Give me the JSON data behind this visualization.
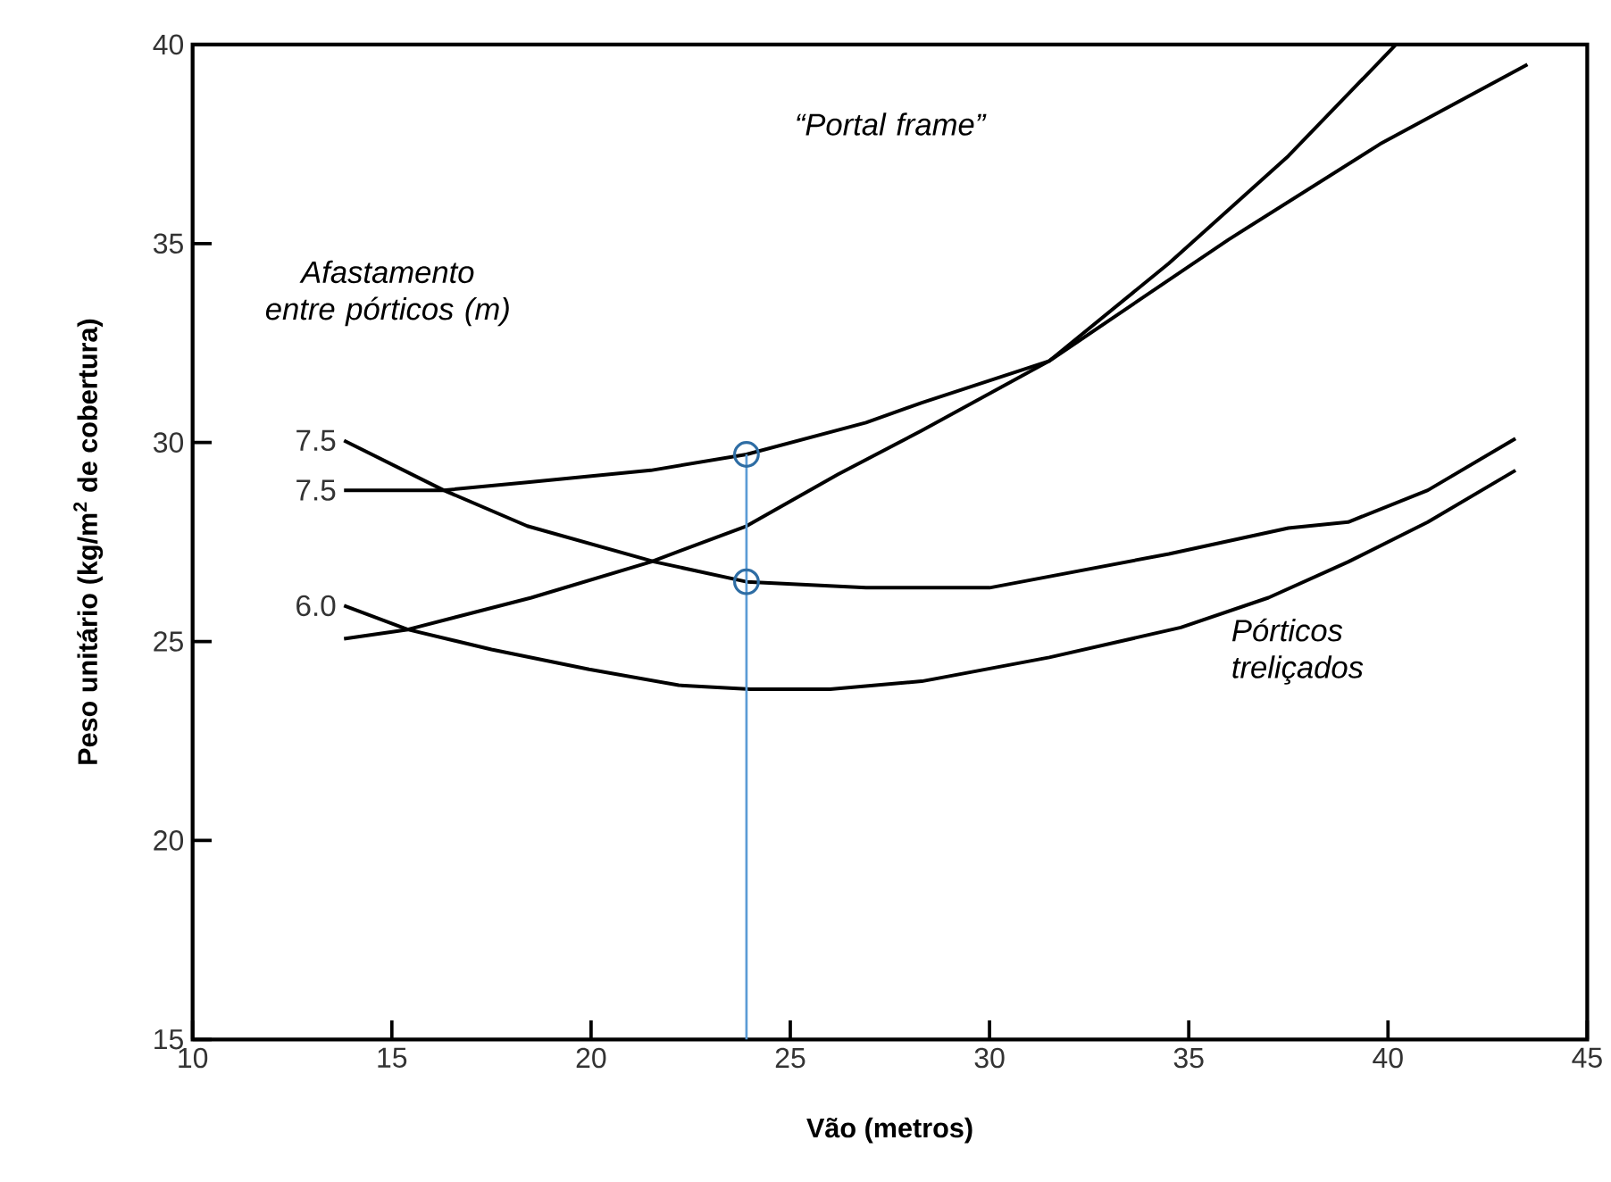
{
  "chart_data": {
    "type": "line",
    "xlabel": "Vão (metros)",
    "ylabel": "Peso unitário (kg/m$^{2}$ de cobertura)",
    "xlim": [
      10,
      45
    ],
    "ylim": [
      15,
      40
    ],
    "xticks": [
      10,
      15,
      20,
      25,
      30,
      35,
      40,
      45
    ],
    "yticks": [
      15,
      20,
      25,
      30,
      35,
      40
    ],
    "line_style": "solid",
    "marker": "none",
    "annotations": [
      "Afastamento entre pórticos (m)",
      "“Portal frame”",
      "Pórticos treliçados"
    ],
    "series": [
      {
        "name": "7.5",
        "color": "#000000",
        "x": [
          13.8,
          16.3,
          18.4,
          21.6,
          23.9,
          26.9,
          30,
          34.5,
          37.5,
          39,
          41,
          43.2
        ],
        "values": [
          30.05,
          28.8,
          27.9,
          27.0,
          26.5,
          26.35,
          26.35,
          27.2,
          27.85,
          28.0,
          28.8,
          30.1
        ]
      },
      {
        "name": "7.5",
        "color": "#000000",
        "x": [
          13.8,
          16.3,
          18.4,
          21.5,
          23.9,
          26.9,
          28.3,
          31.5,
          36,
          39.8,
          43.5
        ],
        "values": [
          28.8,
          28.8,
          29.0,
          29.3,
          29.7,
          30.5,
          31.0,
          32.05,
          35.1,
          37.5,
          39.5
        ]
      },
      {
        "name": "6.0",
        "color": "#000000",
        "x": [
          13.8,
          15.4,
          17.5,
          19.95,
          22.2,
          24,
          26,
          28.3,
          31.5,
          34.8,
          37,
          39,
          41,
          43.2
        ],
        "values": [
          25.9,
          25.3,
          24.8,
          24.3,
          23.9,
          23.8,
          23.8,
          24.0,
          24.6,
          25.35,
          26.1,
          27.0,
          28.0,
          29.3
        ]
      },
      {
        "color": "#000000",
        "x": [
          13.8,
          15.4,
          18.5,
          21.5,
          23.9,
          26.2,
          28.3,
          31.5,
          34.5,
          37.5,
          40.2
        ],
        "values": [
          25.07,
          25.3,
          26.1,
          27.0,
          27.9,
          29.2,
          30.3,
          32.05,
          34.5,
          37.2,
          40
        ]
      },
      {
        "color": "#5b9bd5",
        "x": [
          23.9,
          23.9
        ],
        "values": [
          15,
          29.7
        ]
      },
      {
        "type": "scatter",
        "marker": "circle",
        "color": "#2e6da4",
        "x": [
          23.9,
          23.9
        ],
        "values": [
          29.7,
          26.5
        ]
      }
    ]
  }
}
